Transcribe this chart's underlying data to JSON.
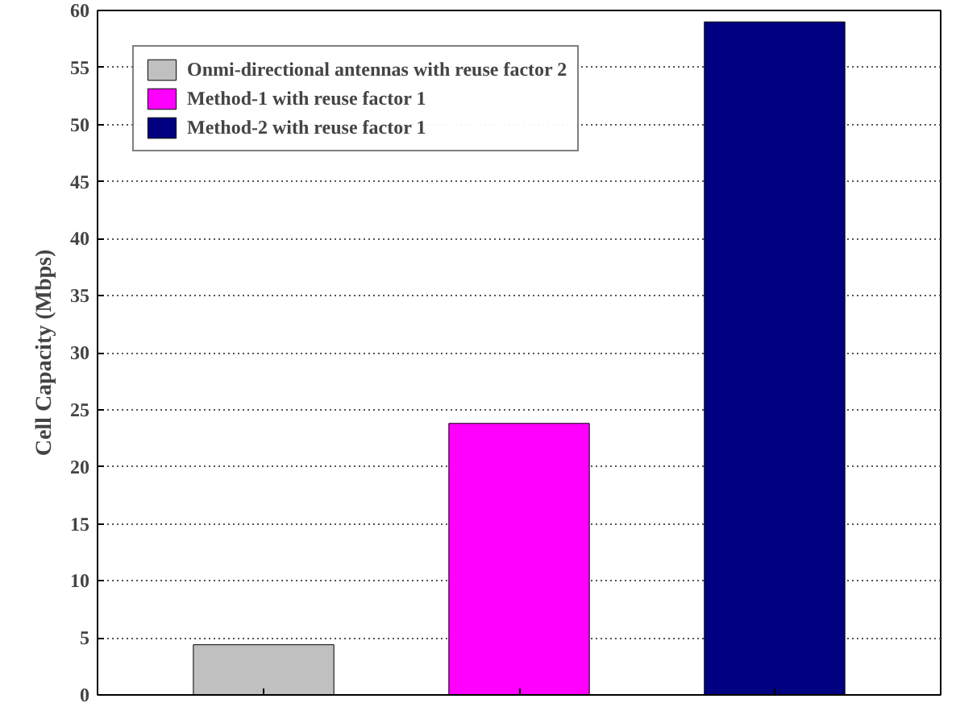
{
  "chart_data": {
    "type": "bar",
    "ylabel": "Cell Capacity (Mbps)",
    "categories": [
      null,
      null,
      null
    ],
    "series": [
      {
        "name": "Onmi-directional antennas with reuse factor 2",
        "color": "#c0c0c0",
        "values": [
          4.4,
          null,
          null
        ]
      },
      {
        "name": "Method-1 with reuse factor 1",
        "color": "#ff00ff",
        "values": [
          null,
          23.8,
          null
        ]
      },
      {
        "name": "Method-2 with reuse factor 1",
        "color": "#000080",
        "values": [
          null,
          null,
          59.0
        ]
      }
    ],
    "ylim": [
      0,
      60
    ],
    "yticks": [
      0,
      5,
      10,
      15,
      20,
      25,
      30,
      35,
      40,
      45,
      50,
      55,
      60
    ],
    "grid": "y",
    "legend": "top left"
  }
}
